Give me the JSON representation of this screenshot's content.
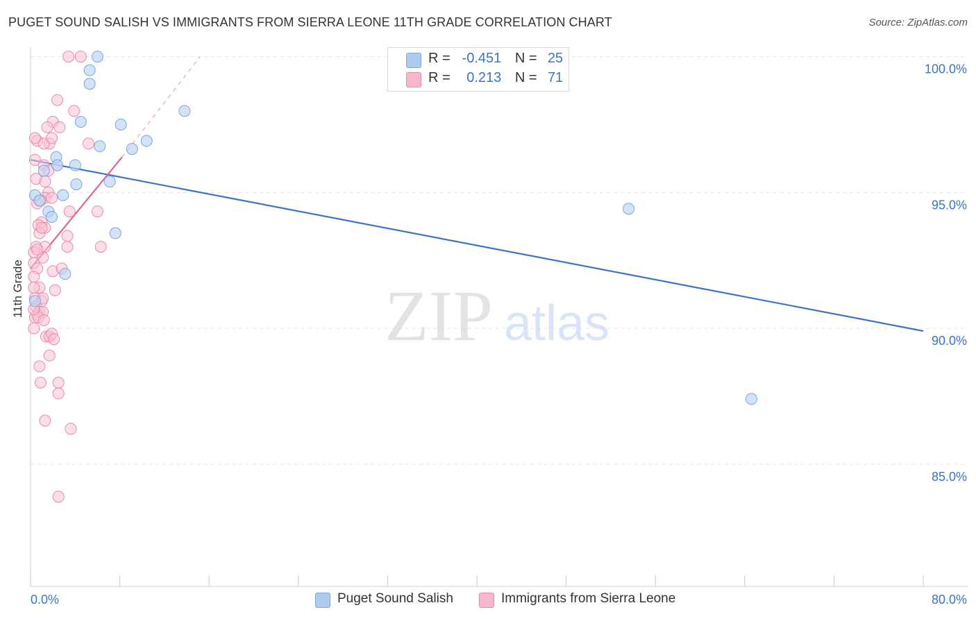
{
  "header": {
    "title": "PUGET SOUND SALISH VS IMMIGRANTS FROM SIERRA LEONE 11TH GRADE CORRELATION CHART",
    "source": "Source: ZipAtlas.com"
  },
  "watermark": {
    "zip": "ZIP",
    "atlas": "atlas"
  },
  "legend": {
    "rows": [
      {
        "r_label": "R =",
        "r_value": "-0.451",
        "n_label": "N =",
        "n_value": "25",
        "color": "#aecbf0"
      },
      {
        "r_label": "R =",
        "r_value": "0.213",
        "n_label": "N =",
        "n_value": "71",
        "color": "#f7b8cc"
      }
    ]
  },
  "bottom_legend": [
    {
      "label": "Puget Sound Salish",
      "color": "#aecbf0"
    },
    {
      "label": "Immigrants from Sierra Leone",
      "color": "#f7b8cc"
    }
  ],
  "colors": {
    "blue_point_fill": "#bcd4f2",
    "blue_point_stroke": "#7aa5dd",
    "blue_line": "#3b73c9",
    "pink_point_fill": "#f9c3d3",
    "pink_point_stroke": "#e98aa9",
    "pink_line": "#e0648c",
    "grid": "#e3e3e3",
    "axis_tick_label": "#3b73c9"
  },
  "chart_data": {
    "type": "scatter",
    "title": "PUGET SOUND SALISH VS IMMIGRANTS FROM SIERRA LEONE 11TH GRADE CORRELATION CHART",
    "xlabel": "",
    "ylabel": "11th Grade",
    "xlim": [
      0,
      80
    ],
    "ylim": [
      80.5,
      100.5
    ],
    "x_tick_labels": [
      {
        "value": 0,
        "label": "0.0%"
      },
      {
        "value": 80,
        "label": "80.0%"
      }
    ],
    "x_minor_ticks": [
      0,
      8,
      16,
      24,
      32,
      40,
      48,
      56,
      64,
      72,
      80
    ],
    "y_ticks": [
      {
        "value": 100,
        "label": "100.0%"
      },
      {
        "value": 95,
        "label": "95.0%"
      },
      {
        "value": 90,
        "label": "90.0%"
      },
      {
        "value": 85,
        "label": "85.0%"
      }
    ],
    "grid": true,
    "series": [
      {
        "name": "Puget Sound Salish",
        "color": "#aecbf0",
        "points": [
          [
            6.0,
            100.0
          ],
          [
            5.3,
            99.5
          ],
          [
            5.3,
            99.0
          ],
          [
            13.8,
            98.0
          ],
          [
            4.5,
            97.6
          ],
          [
            8.1,
            97.5
          ],
          [
            10.4,
            96.9
          ],
          [
            6.2,
            96.7
          ],
          [
            9.1,
            96.6
          ],
          [
            2.3,
            96.3
          ],
          [
            4.0,
            96.0
          ],
          [
            2.4,
            96.0
          ],
          [
            1.2,
            95.8
          ],
          [
            4.1,
            95.3
          ],
          [
            7.1,
            95.4
          ],
          [
            0.4,
            94.9
          ],
          [
            2.9,
            94.9
          ],
          [
            0.8,
            94.7
          ],
          [
            1.6,
            94.3
          ],
          [
            1.9,
            94.1
          ],
          [
            53.6,
            94.4
          ],
          [
            7.6,
            93.5
          ],
          [
            3.1,
            92.0
          ],
          [
            0.4,
            91.0
          ],
          [
            64.6,
            87.4
          ]
        ],
        "trend": {
          "x": [
            0,
            80
          ],
          "y": [
            96.2,
            89.9
          ]
        }
      },
      {
        "name": "Immigrants from Sierra Leone",
        "color": "#f7b8cc",
        "points": [
          [
            3.4,
            100.0
          ],
          [
            4.5,
            100.0
          ],
          [
            2.4,
            98.4
          ],
          [
            3.9,
            98.0
          ],
          [
            2.0,
            97.6
          ],
          [
            1.5,
            97.4
          ],
          [
            2.6,
            97.4
          ],
          [
            0.6,
            96.9
          ],
          [
            1.7,
            96.8
          ],
          [
            1.2,
            96.8
          ],
          [
            5.2,
            96.8
          ],
          [
            0.4,
            96.2
          ],
          [
            2.4,
            96.0
          ],
          [
            1.2,
            96.0
          ],
          [
            1.6,
            95.8
          ],
          [
            0.5,
            95.5
          ],
          [
            1.3,
            95.4
          ],
          [
            1.6,
            95.0
          ],
          [
            1.3,
            94.8
          ],
          [
            0.6,
            94.6
          ],
          [
            3.5,
            94.3
          ],
          [
            6.0,
            94.3
          ],
          [
            1.0,
            93.9
          ],
          [
            0.7,
            93.8
          ],
          [
            1.3,
            93.7
          ],
          [
            0.8,
            93.5
          ],
          [
            3.3,
            93.4
          ],
          [
            0.5,
            93.0
          ],
          [
            1.3,
            93.0
          ],
          [
            3.3,
            93.0
          ],
          [
            6.3,
            93.0
          ],
          [
            0.3,
            92.8
          ],
          [
            1.1,
            92.6
          ],
          [
            0.3,
            92.4
          ],
          [
            0.6,
            92.2
          ],
          [
            2.0,
            92.1
          ],
          [
            2.8,
            92.2
          ],
          [
            0.3,
            91.9
          ],
          [
            0.8,
            91.5
          ],
          [
            0.4,
            91.1
          ],
          [
            2.2,
            91.4
          ],
          [
            1.0,
            91.0
          ],
          [
            0.5,
            90.8
          ],
          [
            0.8,
            90.6
          ],
          [
            0.6,
            90.5
          ],
          [
            1.1,
            90.6
          ],
          [
            0.4,
            90.4
          ],
          [
            0.7,
            90.4
          ],
          [
            1.2,
            90.3
          ],
          [
            0.3,
            90.0
          ],
          [
            1.4,
            89.7
          ],
          [
            1.7,
            89.7
          ],
          [
            1.9,
            89.8
          ],
          [
            2.1,
            89.6
          ],
          [
            1.7,
            89.0
          ],
          [
            0.8,
            88.6
          ],
          [
            0.9,
            88.0
          ],
          [
            2.5,
            88.0
          ],
          [
            2.5,
            87.6
          ],
          [
            1.3,
            86.6
          ],
          [
            3.6,
            86.3
          ],
          [
            2.5,
            83.8
          ],
          [
            0.3,
            91.5
          ],
          [
            0.6,
            92.9
          ],
          [
            1.0,
            93.7
          ],
          [
            0.9,
            94.7
          ],
          [
            1.9,
            94.8
          ],
          [
            0.4,
            97.0
          ],
          [
            1.9,
            97.0
          ],
          [
            0.3,
            90.7
          ],
          [
            1.1,
            91.1
          ]
        ],
        "trend": {
          "x": [
            0,
            8.2
          ],
          "y": [
            92.2,
            96.3
          ]
        },
        "trend_extension": {
          "x": [
            8.2,
            15.2
          ],
          "y": [
            96.3,
            100.0
          ]
        }
      }
    ]
  }
}
